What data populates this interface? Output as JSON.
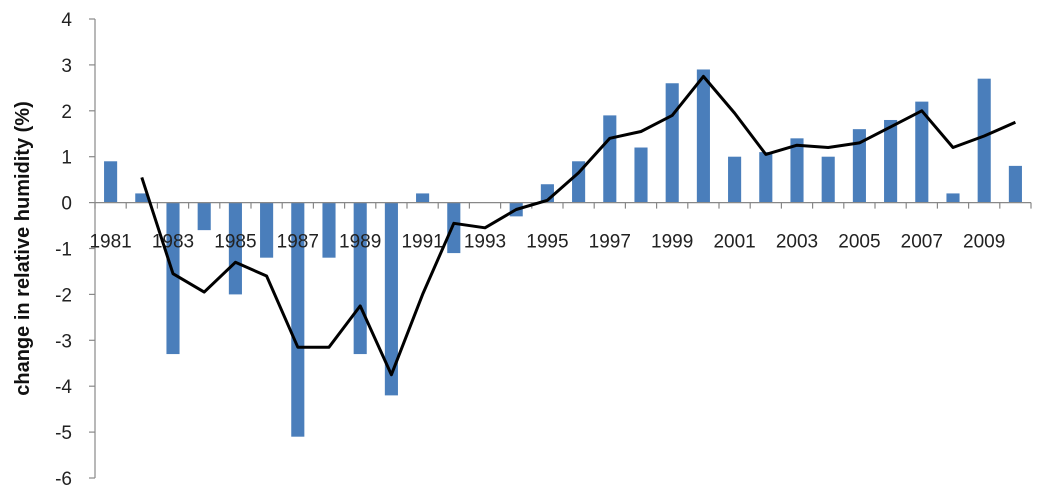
{
  "chart_data": {
    "type": "bar",
    "title": "",
    "xlabel": "",
    "ylabel": "change in relative humidity (%)",
    "ylim": [
      -6,
      4
    ],
    "yticks": [
      -6,
      -5,
      -4,
      -3,
      -2,
      -1,
      0,
      1,
      2,
      3,
      4
    ],
    "grid": false,
    "legend": "none",
    "categories": [
      "1981",
      "1982",
      "1983",
      "1984",
      "1985",
      "1986",
      "1987",
      "1988",
      "1989",
      "1990",
      "1991",
      "1992",
      "1993",
      "1994",
      "1995",
      "1996",
      "1997",
      "1998",
      "1999",
      "2000",
      "2001",
      "2002",
      "2003",
      "2004",
      "2005",
      "2006",
      "2007",
      "2008",
      "2009",
      "2010"
    ],
    "xtick_labels": [
      "1981",
      "1983",
      "1985",
      "1987",
      "1989",
      "1991",
      "1993",
      "1995",
      "1997",
      "1999",
      "2001",
      "2003",
      "2005",
      "2007",
      "2009"
    ],
    "series": [
      {
        "kind": "bar",
        "color": "#4a7ebb",
        "values": [
          0.9,
          0.2,
          -3.3,
          -0.6,
          -2.0,
          -1.2,
          -5.1,
          -1.2,
          -3.3,
          -4.2,
          0.2,
          -1.1,
          0.0,
          -0.3,
          0.4,
          0.9,
          1.9,
          1.2,
          2.6,
          2.9,
          1.0,
          1.1,
          1.4,
          1.0,
          1.6,
          1.8,
          2.2,
          0.2,
          2.7,
          0.8
        ]
      },
      {
        "kind": "line",
        "color": "#000000",
        "values": [
          null,
          0.55,
          -1.55,
          -1.95,
          -1.3,
          -1.6,
          -3.15,
          -3.15,
          -2.25,
          -3.75,
          -2.0,
          -0.45,
          -0.55,
          -0.15,
          0.05,
          0.65,
          1.4,
          1.55,
          1.9,
          2.75,
          1.95,
          1.05,
          1.25,
          1.2,
          1.3,
          1.65,
          2.0,
          1.2,
          1.45,
          1.75
        ]
      }
    ]
  }
}
